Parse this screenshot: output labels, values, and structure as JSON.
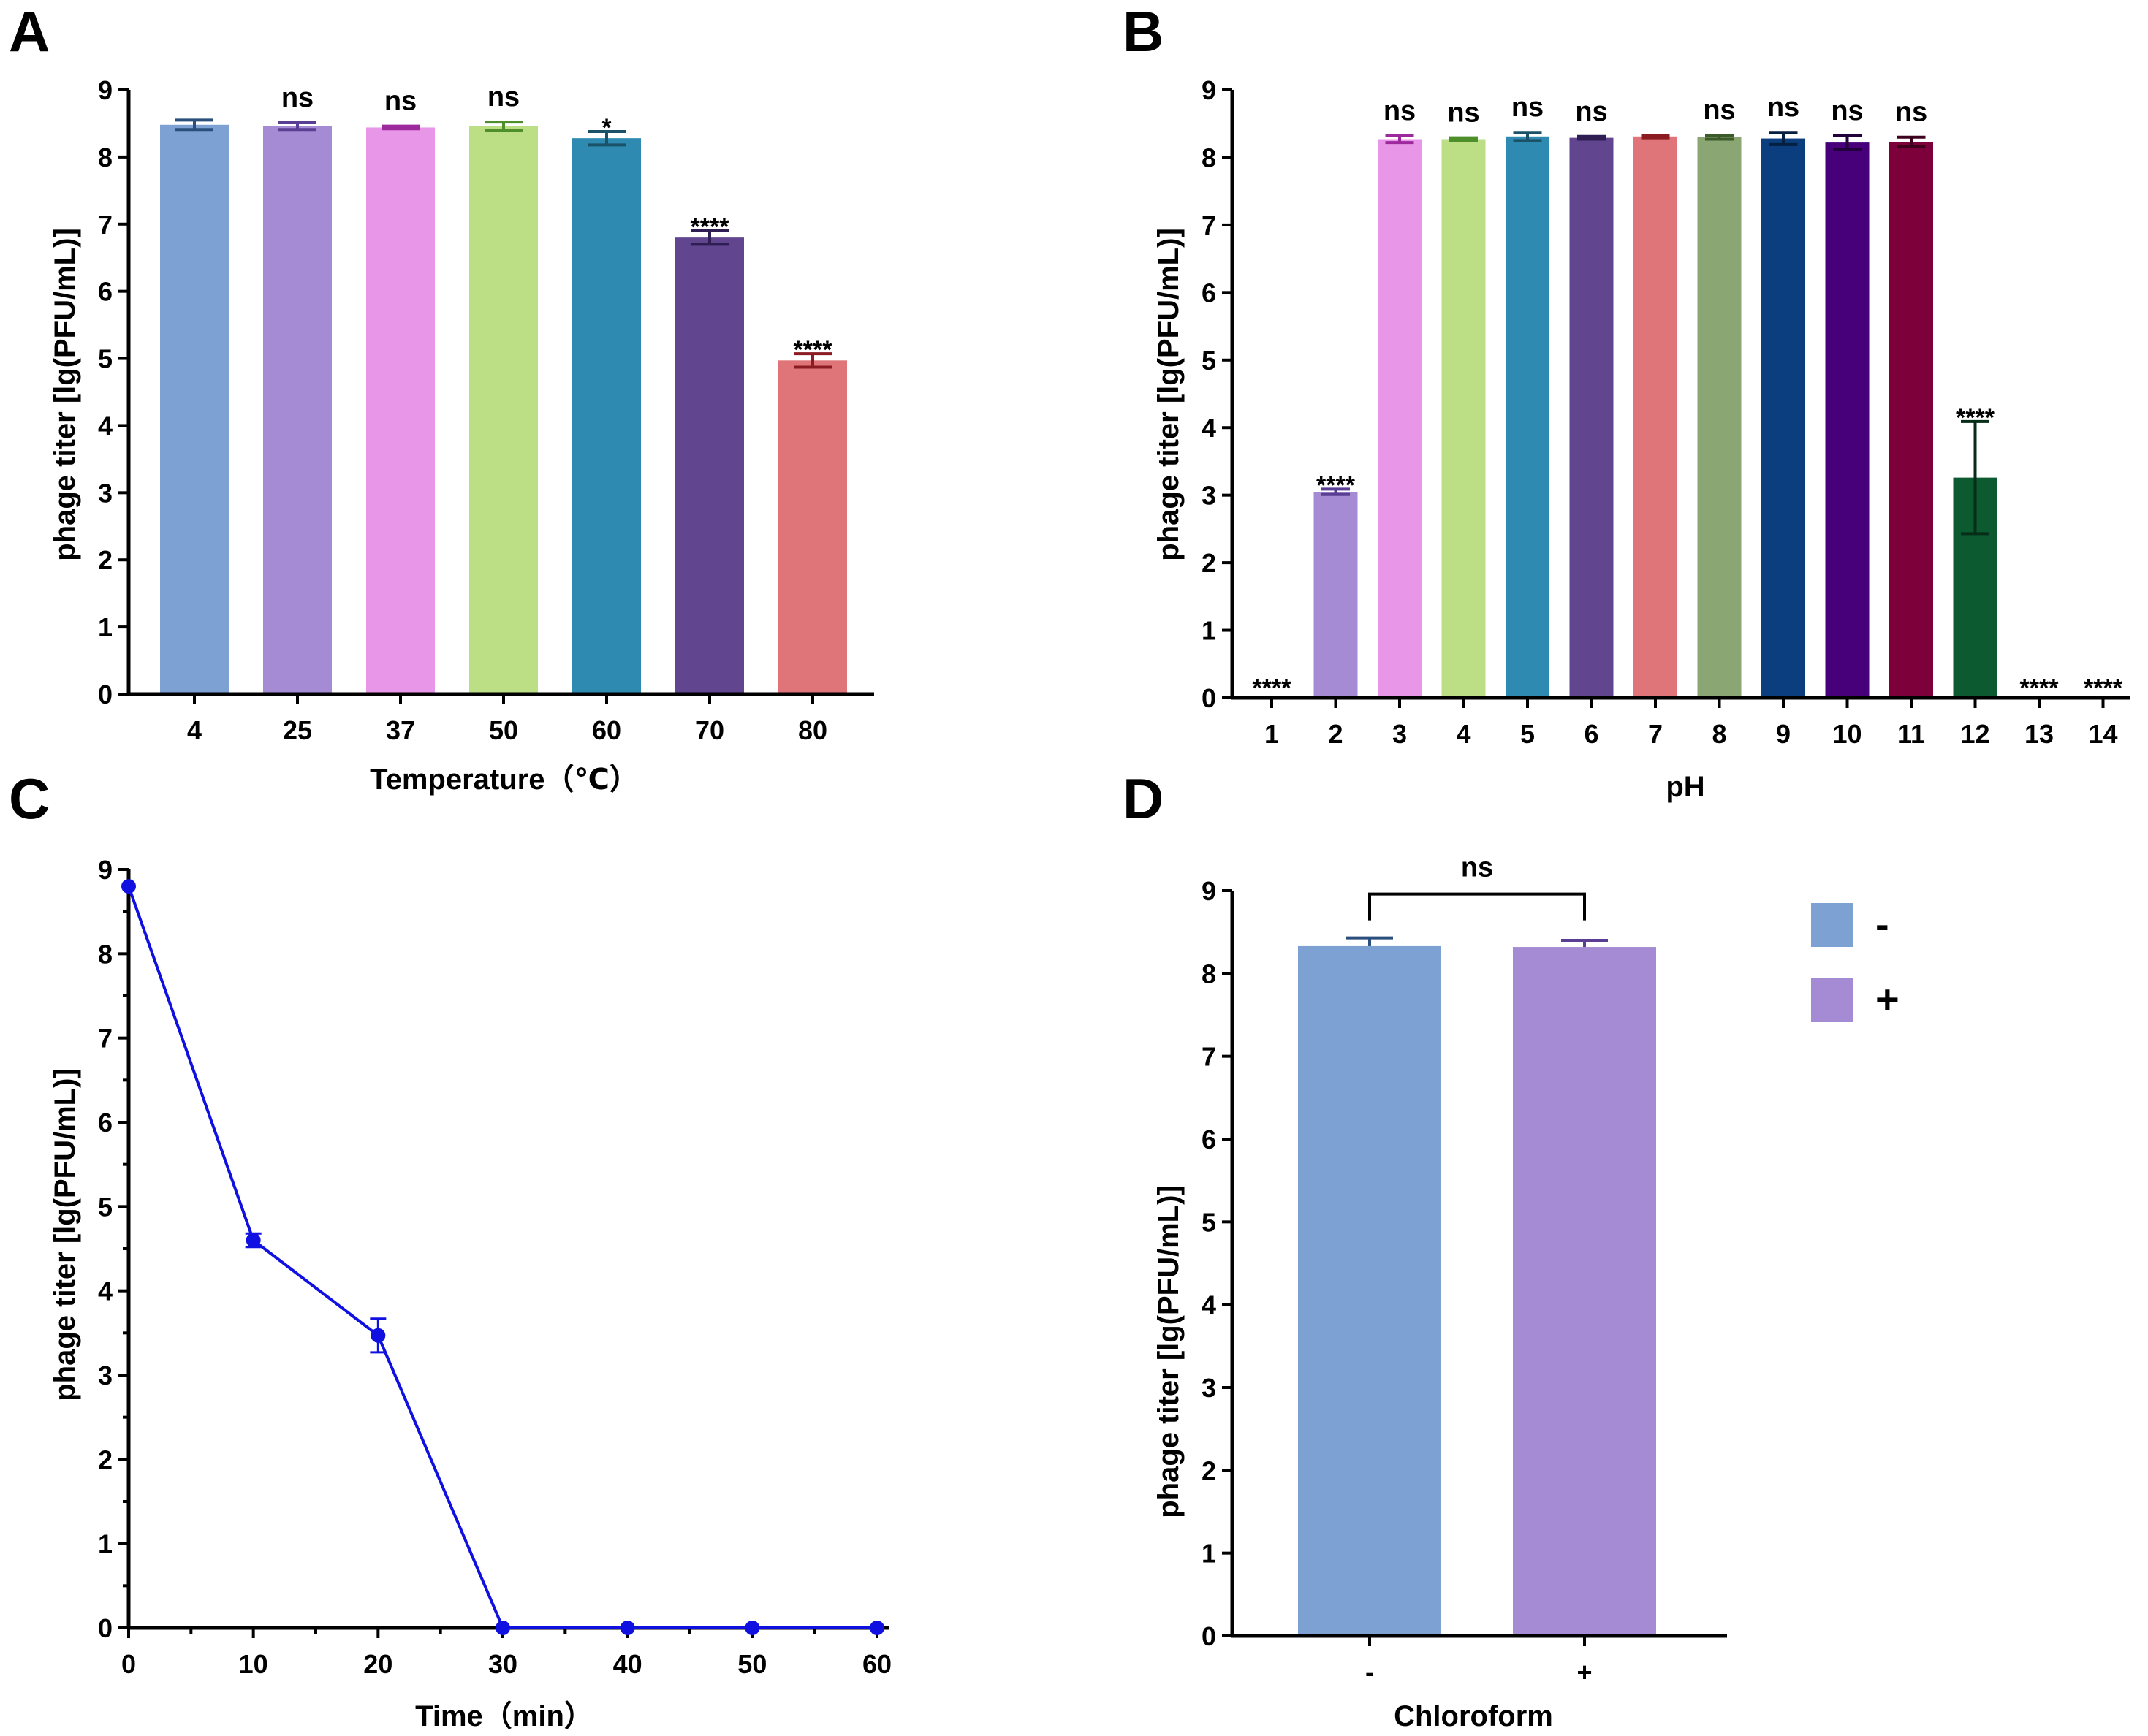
{
  "chart_data": [
    {
      "panel": "A",
      "type": "bar",
      "categories": [
        "4",
        "25",
        "37",
        "50",
        "60",
        "70",
        "80"
      ],
      "values": [
        8.48,
        8.46,
        8.44,
        8.46,
        8.28,
        6.8,
        4.97
      ],
      "errors": [
        0.07,
        0.05,
        0.02,
        0.06,
        0.1,
        0.1,
        0.1
      ],
      "significance": [
        "",
        "ns",
        "ns",
        "ns",
        "*",
        "****",
        "****"
      ],
      "colors": [
        "#7ea1d3",
        "#a58bd3",
        "#e896e8",
        "#bcdf85",
        "#2f8ab1",
        "#61458f",
        "#df7579"
      ],
      "error_colors": [
        "#2b4f7c",
        "#5a3e93",
        "#9c2a9c",
        "#4e8f2b",
        "#1b5268",
        "#2e1e52",
        "#8a1c22"
      ],
      "xlabel": "Temperature（℃）",
      "ylabel": "phage titer [lg(PFU/mL)]",
      "ylim": [
        0,
        9
      ],
      "yticks": [
        "0",
        "1",
        "2",
        "3",
        "4",
        "5",
        "6",
        "7",
        "8",
        "9"
      ]
    },
    {
      "panel": "B",
      "type": "bar",
      "categories": [
        "1",
        "2",
        "3",
        "4",
        "5",
        "6",
        "7",
        "8",
        "9",
        "10",
        "11",
        "12",
        "13",
        "14"
      ],
      "values": [
        0,
        3.05,
        8.27,
        8.27,
        8.31,
        8.29,
        8.31,
        8.3,
        8.28,
        8.22,
        8.23,
        3.26,
        0,
        0
      ],
      "errors": [
        0,
        0.04,
        0.05,
        0.02,
        0.06,
        0.02,
        0.02,
        0.03,
        0.09,
        0.1,
        0.07,
        0.83,
        0,
        0
      ],
      "significance": [
        "****",
        "****",
        "ns",
        "ns",
        "ns",
        "ns",
        "",
        "ns",
        "ns",
        "ns",
        "ns",
        "****",
        "****",
        "****"
      ],
      "colors": [
        "#ffffff",
        "#a58bd3",
        "#e896e8",
        "#bcdf85",
        "#2f8ab1",
        "#61458f",
        "#df7579",
        "#8aa673",
        "#0a3e7e",
        "#470079",
        "#7d003b",
        "#0b5a30",
        "#ffffff",
        "#ffffff"
      ],
      "error_colors": [
        "#000000",
        "#5a3e93",
        "#9c2a9c",
        "#4e8f2b",
        "#1b5268",
        "#2e1e52",
        "#8a1c22",
        "#3d5a2a",
        "#051f40",
        "#22003c",
        "#3d001d",
        "#052d18",
        "#000000",
        "#000000"
      ],
      "xlabel": "pH",
      "ylabel": "phage titer [lg(PFU/mL)]",
      "ylim": [
        0,
        9
      ],
      "yticks": [
        "0",
        "1",
        "2",
        "3",
        "4",
        "5",
        "6",
        "7",
        "8",
        "9"
      ]
    },
    {
      "panel": "C",
      "type": "line",
      "x": [
        0,
        10,
        20,
        30,
        40,
        50,
        60
      ],
      "y": [
        8.8,
        4.6,
        3.47,
        0,
        0,
        0,
        0
      ],
      "errors": [
        0,
        0.08,
        0.2,
        0,
        0,
        0,
        0
      ],
      "color": "#1010e0",
      "xlabel": "Time（min）",
      "ylabel": "phage titer [lg(PFU/mL)]",
      "xlim": [
        0,
        60
      ],
      "ylim": [
        0,
        9
      ],
      "xticks": [
        "0",
        "10",
        "20",
        "30",
        "40",
        "50",
        "60"
      ],
      "yticks": [
        "0",
        "1",
        "2",
        "3",
        "4",
        "5",
        "6",
        "7",
        "8",
        "9"
      ]
    },
    {
      "panel": "D",
      "type": "bar",
      "categories": [
        "-",
        "+"
      ],
      "values": [
        8.33,
        8.32
      ],
      "errors": [
        0.1,
        0.08
      ],
      "colors": [
        "#7ea1d3",
        "#a58bd3"
      ],
      "error_colors": [
        "#2b4f7c",
        "#5a3e93"
      ],
      "comparison": "ns",
      "xlabel": "Chloroform",
      "ylabel": "phage titer [lg(PFU/mL)]",
      "ylim": [
        0,
        9
      ],
      "yticks": [
        "0",
        "1",
        "2",
        "3",
        "4",
        "5",
        "6",
        "7",
        "8",
        "9"
      ],
      "legend": [
        {
          "label": "-",
          "color": "#7ea1d3"
        },
        {
          "label": "+",
          "color": "#a58bd3"
        }
      ]
    }
  ]
}
